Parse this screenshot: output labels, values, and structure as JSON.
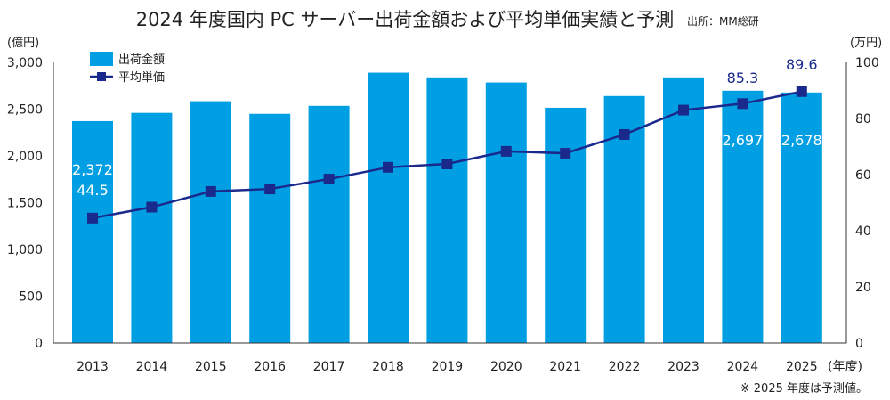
{
  "chart_data": {
    "type": "bar+line",
    "title": "2024 年度国内 PC サーバー出荷金額および平均単価実績と予測",
    "source": "出所：MM総研",
    "left_axis_label": "(億円)",
    "right_axis_label": "(万円)",
    "x_axis_label": "(年度)",
    "footnote": "※ 2025 年度は予測値。",
    "categories": [
      "2013",
      "2014",
      "2015",
      "2016",
      "2017",
      "2018",
      "2019",
      "2020",
      "2021",
      "2022",
      "2023",
      "2024",
      "2025"
    ],
    "left_ylim": [
      0,
      3000
    ],
    "left_ticks": [
      0,
      500,
      1000,
      1500,
      2000,
      2500,
      3000
    ],
    "left_tick_labels": [
      "0",
      "500",
      "1,000",
      "1,500",
      "2,000",
      "2,500",
      "3,000"
    ],
    "right_ylim": [
      0,
      100
    ],
    "right_ticks": [
      0,
      20,
      40,
      60,
      80,
      100
    ],
    "right_tick_labels": [
      "0",
      "20",
      "40",
      "60",
      "80",
      "100"
    ],
    "series": [
      {
        "name": "出荷金額",
        "type": "bar",
        "color": "#009fe3",
        "values": [
          2372,
          2460,
          2585,
          2450,
          2535,
          2890,
          2840,
          2785,
          2515,
          2640,
          2840,
          2697,
          2678
        ],
        "labels": {
          "0": "2,372",
          "11": "2,697",
          "12": "2,678"
        }
      },
      {
        "name": "平均単価",
        "type": "line",
        "color": "#1a2a8c",
        "axis": "right",
        "values": [
          44.5,
          48.4,
          54.0,
          54.9,
          58.4,
          62.6,
          63.8,
          68.3,
          67.6,
          74.3,
          83.0,
          85.3,
          89.6
        ],
        "labels": {
          "0": "44.5",
          "11": "85.3",
          "12": "89.6"
        }
      }
    ],
    "legend": "top-left"
  }
}
